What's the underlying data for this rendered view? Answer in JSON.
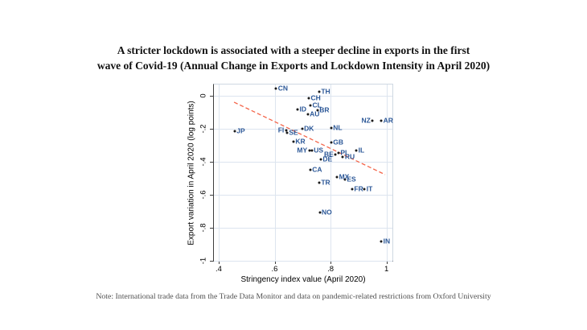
{
  "title": {
    "line1": "A stricter lockdown is associated with a steeper decline in exports in the first",
    "line2": "wave of  Covid-19 (Annual Change in Exports and Lockdown Intensity in April 2020)"
  },
  "note": "Note: International trade data from the Trade Data Monitor and data on pandemic-related restrictions from Oxford University",
  "chart_data": {
    "type": "scatter",
    "title": "A stricter lockdown is associated with a steeper decline in exports in the first wave of Covid-19 (Annual Change in Exports and Lockdown Intensity in April 2020)",
    "xlabel": "Stringency index value (April 2020)",
    "ylabel": "Export variation in April 2020 (log points)",
    "xlim": [
      0.383,
      1.021
    ],
    "ylim": [
      -1.0,
      0.068
    ],
    "grid": true,
    "legend": "none",
    "x_ticks": [
      {
        "v": 0.4,
        "label": ".4"
      },
      {
        "v": 0.6,
        "label": ".6"
      },
      {
        "v": 0.8,
        "label": ".8"
      },
      {
        "v": 1.0,
        "label": "1"
      }
    ],
    "y_ticks": [
      {
        "v": 0,
        "label": "0"
      },
      {
        "v": -0.2,
        "label": "-.2"
      },
      {
        "v": -0.4,
        "label": "-.4"
      },
      {
        "v": -0.6,
        "label": "-.6"
      },
      {
        "v": -0.8,
        "label": "-.8"
      },
      {
        "v": -1.0,
        "label": "-1"
      }
    ],
    "points": [
      {
        "code": "CN",
        "x": 0.605,
        "y": 0.042,
        "label_side": "right"
      },
      {
        "code": "TH",
        "x": 0.759,
        "y": 0.026,
        "label_side": "right"
      },
      {
        "code": "CH",
        "x": 0.722,
        "y": -0.015,
        "label_side": "right"
      },
      {
        "code": "CL",
        "x": 0.728,
        "y": -0.057,
        "label_side": "right"
      },
      {
        "code": "ID",
        "x": 0.682,
        "y": -0.083,
        "label_side": "right"
      },
      {
        "code": "BR",
        "x": 0.753,
        "y": -0.086,
        "label_side": "right"
      },
      {
        "code": "AU",
        "x": 0.718,
        "y": -0.111,
        "label_side": "right"
      },
      {
        "code": "NZ",
        "x": 0.95,
        "y": -0.153,
        "label_side": "left"
      },
      {
        "code": "AR",
        "x": 0.981,
        "y": -0.153,
        "label_side": "right"
      },
      {
        "code": "JP",
        "x": 0.457,
        "y": -0.213,
        "label_side": "right"
      },
      {
        "code": "FI",
        "x": 0.641,
        "y": -0.208,
        "label_side": "left"
      },
      {
        "code": "SE",
        "x": 0.644,
        "y": -0.226,
        "label_side": "right"
      },
      {
        "code": "DK",
        "x": 0.698,
        "y": -0.2,
        "label_side": "right"
      },
      {
        "code": "NL",
        "x": 0.802,
        "y": -0.197,
        "label_side": "right"
      },
      {
        "code": "KR",
        "x": 0.667,
        "y": -0.278,
        "label_side": "right"
      },
      {
        "code": "GB",
        "x": 0.802,
        "y": -0.283,
        "label_side": "right"
      },
      {
        "code": "MY",
        "x": 0.724,
        "y": -0.334,
        "label_side": "left"
      },
      {
        "code": "US",
        "x": 0.733,
        "y": -0.334,
        "label_side": "right"
      },
      {
        "code": "BE",
        "x": 0.818,
        "y": -0.356,
        "label_side": "left"
      },
      {
        "code": "PL",
        "x": 0.828,
        "y": -0.346,
        "label_side": "right"
      },
      {
        "code": "RU",
        "x": 0.844,
        "y": -0.371,
        "label_side": "right"
      },
      {
        "code": "IL",
        "x": 0.892,
        "y": -0.332,
        "label_side": "right"
      },
      {
        "code": "DE",
        "x": 0.765,
        "y": -0.384,
        "label_side": "right"
      },
      {
        "code": "CA",
        "x": 0.727,
        "y": -0.449,
        "label_side": "right"
      },
      {
        "code": "MX",
        "x": 0.823,
        "y": -0.493,
        "label_side": "right"
      },
      {
        "code": "ES",
        "x": 0.851,
        "y": -0.509,
        "label_side": "right"
      },
      {
        "code": "TR",
        "x": 0.759,
        "y": -0.525,
        "label_side": "right"
      },
      {
        "code": "FR",
        "x": 0.877,
        "y": -0.567,
        "label_side": "right"
      },
      {
        "code": "IT",
        "x": 0.921,
        "y": -0.567,
        "label_side": "right"
      },
      {
        "code": "NO",
        "x": 0.761,
        "y": -0.706,
        "label_side": "right"
      },
      {
        "code": "IN",
        "x": 0.981,
        "y": -0.883,
        "label_side": "right"
      }
    ],
    "trend_line": {
      "x1": 0.455,
      "y1": -0.039,
      "x2": 0.995,
      "y2": -0.478,
      "style": "dashed"
    },
    "colors": {
      "dot": "#1a1a1a",
      "point_label": "#2b5797",
      "trend": "#f4654a",
      "grid": "#dde5ef",
      "axis": "#3f3f3f",
      "frame": "#cfd8e2",
      "background": "#ffffff"
    }
  }
}
